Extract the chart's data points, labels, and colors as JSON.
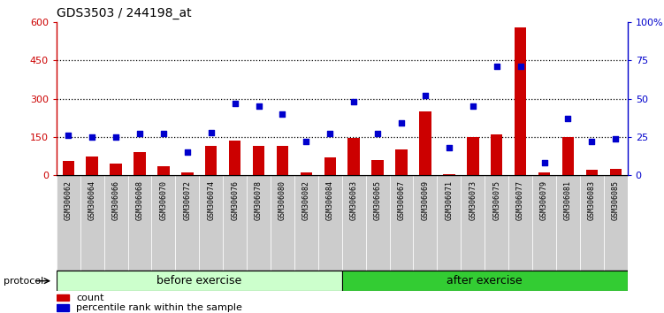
{
  "title": "GDS3503 / 244198_at",
  "categories": [
    "GSM306062",
    "GSM306064",
    "GSM306066",
    "GSM306068",
    "GSM306070",
    "GSM306072",
    "GSM306074",
    "GSM306076",
    "GSM306078",
    "GSM306080",
    "GSM306082",
    "GSM306084",
    "GSM306063",
    "GSM306065",
    "GSM306067",
    "GSM306069",
    "GSM306071",
    "GSM306073",
    "GSM306075",
    "GSM306077",
    "GSM306079",
    "GSM306081",
    "GSM306083",
    "GSM306085"
  ],
  "counts": [
    55,
    75,
    45,
    90,
    35,
    10,
    115,
    135,
    115,
    115,
    10,
    70,
    145,
    60,
    100,
    250,
    5,
    150,
    160,
    580,
    10,
    150,
    20,
    25
  ],
  "percentile_rank": [
    26,
    25,
    25,
    27,
    27,
    15,
    28,
    47,
    45,
    40,
    22,
    27,
    48,
    27,
    34,
    52,
    18,
    45,
    71,
    71,
    8,
    37,
    22,
    24
  ],
  "before_count": 12,
  "after_count": 12,
  "before_label": "before exercise",
  "after_label": "after exercise",
  "protocol_label": "protocol",
  "legend_count": "count",
  "legend_pct": "percentile rank within the sample",
  "ylim_left": [
    0,
    600
  ],
  "ylim_right": [
    0,
    100
  ],
  "yticks_left": [
    0,
    150,
    300,
    450,
    600
  ],
  "yticks_right": [
    0,
    25,
    50,
    75,
    100
  ],
  "ytick_labels_right": [
    "0",
    "25",
    "50",
    "75",
    "100%"
  ],
  "bar_color": "#cc0000",
  "dot_color": "#0000cc",
  "bg_color_before": "#ccffcc",
  "bg_color_after": "#33cc33",
  "col_bg_odd": "#cccccc",
  "col_bg_even": "#dddddd",
  "axis_left_color": "#cc0000",
  "axis_right_color": "#0000cc",
  "hline_vals": [
    150,
    300,
    450
  ]
}
